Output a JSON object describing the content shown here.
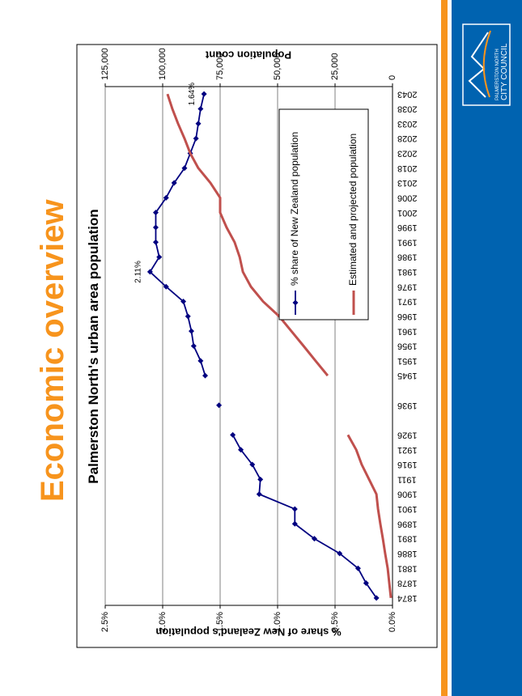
{
  "slide": {
    "title": "Economic overview"
  },
  "logo": {
    "line1": "PALMERSTON NORTH",
    "line2": "CITY COUNCIL"
  },
  "chart_data": {
    "type": "line",
    "title": "Palmerston North's urban area population",
    "ylabel": "% share of New Zealand's population",
    "y2label": "Population count",
    "categories": [
      "1874",
      "1878",
      "1881",
      "1886",
      "1891",
      "1896",
      "1901",
      "1906",
      "1911",
      "1916",
      "1921",
      "1926",
      null,
      "1936",
      null,
      "1945",
      "1951",
      "1956",
      "1961",
      "1966",
      "1971",
      "1976",
      "1981",
      "1986",
      "1991",
      "1996",
      "2001",
      "2006",
      "2013",
      "2018",
      "2023",
      "2028",
      "2033",
      "2038",
      "2043"
    ],
    "series": [
      {
        "name": "% share of New Zealand population",
        "color": "#000080",
        "marker": "diamond",
        "values": [
          0.14,
          0.23,
          0.3,
          0.46,
          0.68,
          0.85,
          0.85,
          1.16,
          1.15,
          1.22,
          1.32,
          1.39,
          null,
          1.51,
          null,
          1.63,
          1.67,
          1.73,
          1.75,
          1.78,
          1.82,
          1.97,
          2.11,
          2.03,
          2.06,
          2.06,
          2.06,
          1.97,
          1.9,
          1.81,
          1.76,
          1.71,
          1.69,
          1.67,
          1.64
        ],
        "value_labels": [
          null,
          null,
          null,
          null,
          null,
          null,
          null,
          null,
          null,
          null,
          null,
          null,
          null,
          null,
          null,
          null,
          null,
          null,
          null,
          null,
          null,
          null,
          "2.11%",
          null,
          null,
          null,
          null,
          null,
          null,
          null,
          null,
          null,
          null,
          null,
          "1.64%"
        ]
      },
      {
        "name": "Estimated and projected population",
        "color": "#c0504d",
        "axis": "y2",
        "values": [
          700,
          1400,
          2100,
          3200,
          4200,
          5300,
          6300,
          7000,
          10200,
          13400,
          15800,
          19400,
          null,
          null,
          null,
          28200,
          33500,
          38700,
          44000,
          49300,
          56300,
          61600,
          65100,
          66500,
          68700,
          72200,
          75000,
          75000,
          79200,
          84500,
          88000,
          90500,
          93300,
          95800,
          97900
        ]
      }
    ],
    "ylim": [
      0,
      2.5
    ],
    "yticks": [
      {
        "value": 0,
        "label": "0.0%"
      },
      {
        "value": 0.5,
        "label": "0.5%"
      },
      {
        "value": 1,
        "label": "1.0%"
      },
      {
        "value": 1.5,
        "label": "1.5%"
      },
      {
        "value": 2,
        "label": "2.0%"
      },
      {
        "value": 2.5,
        "label": "2.5%"
      }
    ],
    "y2lim": [
      0,
      125000
    ],
    "y2ticks": [
      0,
      {
        "value": 25000,
        "label": "25,000"
      },
      {
        "value": 50000,
        "label": "50,000"
      },
      {
        "value": 75000,
        "label": "75,000"
      },
      {
        "value": 100000,
        "label": "100,000"
      },
      {
        "value": 125000,
        "label": "125,000"
      }
    ],
    "grid": true,
    "legend": "right"
  }
}
